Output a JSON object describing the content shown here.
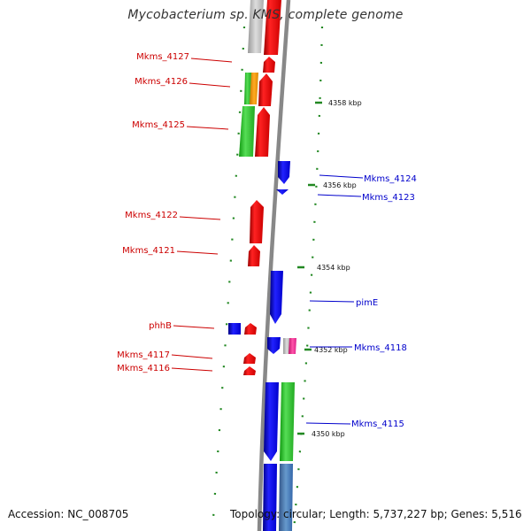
{
  "title": "Mycobacterium sp. KMS, complete genome",
  "footer": {
    "accession": "Accession: NC_008705",
    "topology": "Topology: circular; Length: 5,737,227 bp; Genes: 5,516"
  },
  "scale_labels": [
    "4358 kbp",
    "4356 kbp",
    "4354 kbp",
    "4352 kbp",
    "4350 kbp"
  ],
  "genes_left": [
    "Mkms_4127",
    "Mkms_4126",
    "Mkms_4125",
    "Mkms_4122",
    "Mkms_4121",
    "phhB",
    "Mkms_4117",
    "Mkms_4116"
  ],
  "genes_right": [
    "Mkms_4124",
    "Mkms_4123",
    "pimE",
    "Mkms_4118",
    "Mkms_4115"
  ],
  "colors": {
    "forward": "#ee0000",
    "reverse": "#1111ee",
    "cog_green": "#33cc33",
    "cog_orange": "#ff9900",
    "pink": "#ff3399",
    "grey": "#bbbbbb",
    "steel": "#4477aa",
    "dots": "#228822",
    "backbone": "#888888"
  }
}
